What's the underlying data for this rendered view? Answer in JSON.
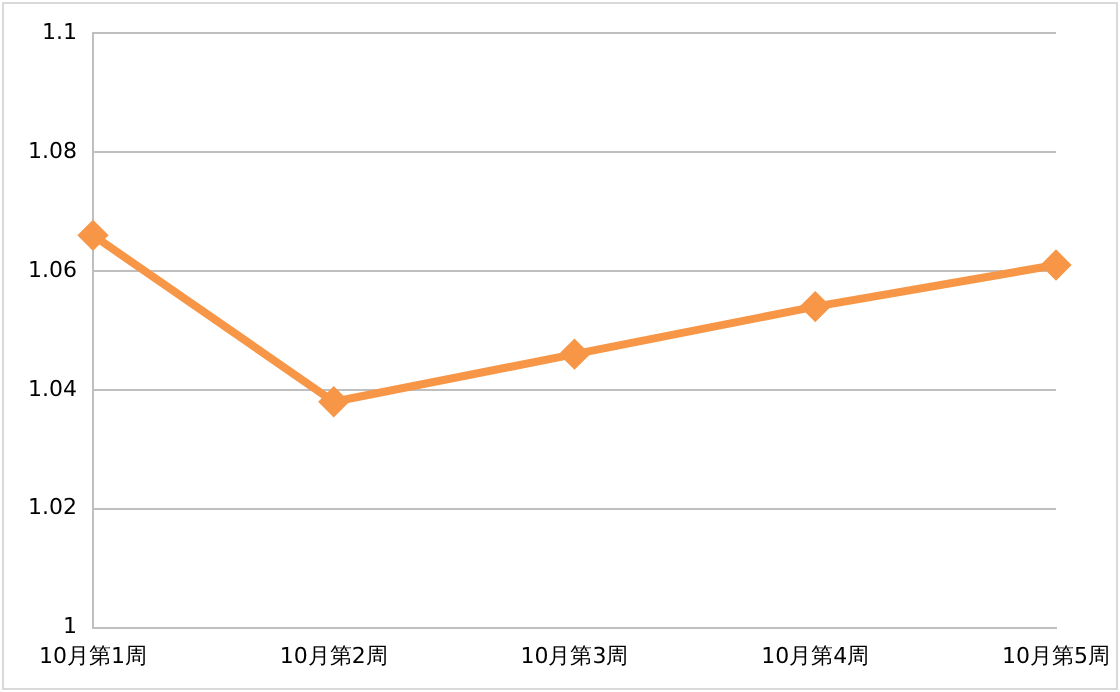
{
  "chart_data": {
    "type": "line",
    "categories": [
      "10月第1周",
      "10月第2周",
      "10月第3周",
      "10月第4周",
      "10月第5周"
    ],
    "series": [
      {
        "color": "#f79646",
        "values": [
          1.066,
          1.038,
          1.046,
          1.054,
          1.061
        ]
      }
    ],
    "ylim": [
      1,
      1.1
    ],
    "yticks": [
      1,
      1.02,
      1.04,
      1.06,
      1.08,
      1.1
    ],
    "grid": "y",
    "legend": false,
    "marker": "diamond",
    "line_style": "solid"
  }
}
